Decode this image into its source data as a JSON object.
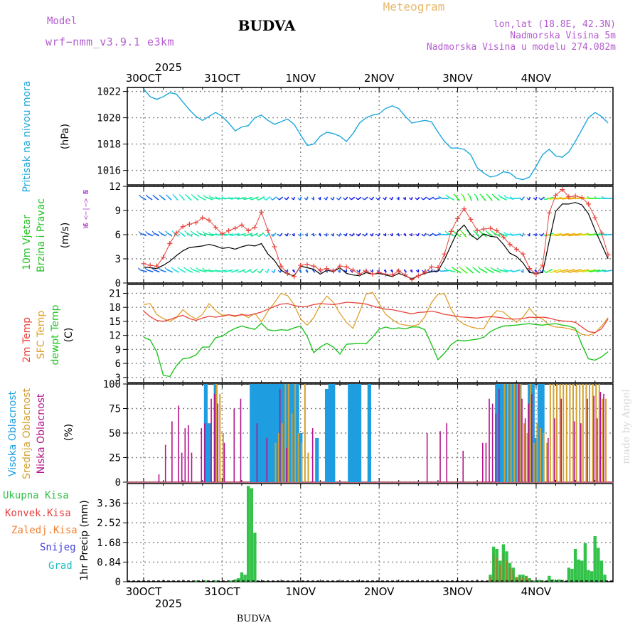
{
  "header": {
    "model_label": "Model",
    "model_name": "wrf−nmm_v3.9.1  e3km",
    "city": "BUDVA",
    "meteogram": "Meteogram",
    "lonlat": "lon,lat (18.8E, 42.3N)",
    "elevation": "Nadmorska Visina 5m",
    "model_elevation": "Nadmorska Visina u modelu 274.082m"
  },
  "footer": {
    "city": "BUDVA",
    "watermark": "made by Angel"
  },
  "colors": {
    "pressure": "#1ca8dc",
    "wind_label": "#22c322",
    "temp2m": "#e8443c",
    "sfc": "#e0a030",
    "dew": "#22c322",
    "high_cloud": "#1e9ee0",
    "mid_cloud": "#d4a030",
    "low_cloud": "#b4148c",
    "total_precip": "#33c24a",
    "conv": "#e84040",
    "frozen": "#f08030",
    "snow": "#4040d8",
    "graupel": "#20c0c0",
    "dir_label": "#b040d0",
    "title": "#c060d0"
  },
  "chart_data": [
    {
      "type": "line",
      "panel": "pressure",
      "ylabel": "Pritisak na nivou mora",
      "units": "(hPa)",
      "yticks": [
        1016,
        1018,
        1020,
        1022
      ],
      "ylim": [
        1014.9,
        1022.3
      ],
      "x_hours": [
        0,
        2,
        4,
        6,
        8,
        10,
        12,
        14,
        16,
        18,
        20,
        22,
        24,
        26,
        28,
        30,
        32,
        34,
        36,
        38,
        40,
        42,
        44,
        46,
        48,
        50,
        52,
        54,
        56,
        58,
        60,
        62,
        64,
        66,
        68,
        70,
        72,
        74,
        76,
        78,
        80,
        82,
        84,
        86,
        88,
        90,
        92,
        94,
        96,
        98,
        100,
        102,
        104,
        106,
        108,
        110,
        112,
        114,
        116,
        118,
        120,
        122,
        124,
        126,
        128,
        130,
        132,
        134,
        136,
        138,
        140,
        142
      ],
      "values": [
        1022.2,
        1021.6,
        1021.4,
        1021.6,
        1021.9,
        1021.8,
        1021.2,
        1020.6,
        1020.1,
        1019.8,
        1020.1,
        1020.4,
        1020.1,
        1019.6,
        1019.0,
        1019.3,
        1019.4,
        1020.0,
        1020.2,
        1019.8,
        1019.5,
        1019.7,
        1019.9,
        1019.5,
        1018.7,
        1017.9,
        1018.0,
        1018.6,
        1018.9,
        1018.8,
        1018.6,
        1018.2,
        1018.8,
        1019.6,
        1020.0,
        1020.2,
        1020.3,
        1020.7,
        1020.9,
        1020.7,
        1020.1,
        1019.6,
        1019.7,
        1019.8,
        1019.7,
        1018.9,
        1018.2,
        1017.7,
        1017.7,
        1017.6,
        1017.2,
        1016.2,
        1015.8,
        1015.5,
        1015.6,
        1015.9,
        1015.8,
        1015.4,
        1015.3,
        1015.5,
        1016.3,
        1017.2,
        1017.6,
        1017.1,
        1017.0,
        1017.4,
        1018.2,
        1019.1,
        1020.0,
        1020.4,
        1020.1,
        1019.6
      ]
    },
    {
      "type": "line",
      "panel": "wind",
      "ylabel": [
        "10m Vjetar",
        "Brzina i Pravac"
      ],
      "units": "(m/s)",
      "dir_label": [
        "N",
        "W <−|−> E",
        "S"
      ],
      "yticks": [
        0,
        3,
        6,
        9,
        12
      ],
      "ylim": [
        0,
        12
      ],
      "speed_hours": [
        0,
        2,
        4,
        6,
        8,
        10,
        12,
        14,
        16,
        18,
        20,
        22,
        24,
        26,
        28,
        30,
        32,
        34,
        36,
        38,
        40,
        42,
        44,
        46,
        48,
        50,
        52,
        54,
        56,
        58,
        60,
        62,
        64,
        66,
        68,
        70,
        72,
        74,
        76,
        78,
        80,
        82,
        84,
        86,
        88,
        90,
        92,
        94,
        96,
        98,
        100,
        102,
        104,
        106,
        108,
        110,
        112,
        114,
        116,
        118,
        120,
        122,
        124,
        126,
        128,
        130,
        132,
        134,
        136,
        138,
        140,
        142
      ],
      "speed": [
        2.0,
        1.9,
        1.8,
        2.2,
        2.7,
        3.4,
        4.0,
        4.4,
        4.5,
        4.6,
        4.8,
        4.6,
        4.3,
        4.4,
        4.2,
        4.5,
        4.7,
        4.6,
        4.9,
        3.6,
        2.8,
        1.6,
        1.1,
        0.9,
        2.1,
        1.9,
        1.7,
        1.1,
        1.6,
        1.4,
        1.9,
        1.2,
        1.0,
        0.9,
        1.3,
        1.1,
        1.2,
        1.0,
        0.8,
        1.2,
        0.9,
        0.5,
        0.9,
        1.2,
        1.4,
        1.5,
        2.9,
        4.7,
        6.4,
        7.2,
        6.0,
        5.4,
        6.1,
        5.8,
        5.7,
        4.8,
        3.7,
        3.3,
        2.5,
        1.3,
        1.2,
        1.3,
        5.2,
        8.9,
        9.8,
        9.8,
        10.0,
        9.7,
        8.6,
        6.6,
        4.8,
        3.0
      ],
      "gust": [
        2.4,
        2.2,
        2.1,
        3.2,
        4.9,
        6.2,
        7.0,
        7.3,
        7.5,
        8.1,
        7.8,
        6.9,
        6.1,
        6.5,
        6.8,
        7.2,
        6.5,
        6.9,
        8.8,
        6.5,
        4.5,
        2.1,
        1.2,
        0.8,
        2.2,
        2.3,
        2.1,
        1.6,
        1.8,
        1.5,
        2.1,
        2.0,
        1.6,
        1.1,
        1.5,
        1.1,
        1.3,
        1.1,
        1.0,
        1.5,
        1.0,
        0.4,
        0.9,
        1.3,
        2.0,
        1.9,
        3.6,
        6.4,
        8.0,
        9.2,
        7.9,
        6.5,
        6.7,
        6.8,
        6.5,
        5.7,
        4.8,
        4.2,
        3.6,
        1.8,
        1.1,
        2.2,
        8.7,
        10.9,
        11.6,
        10.7,
        10.8,
        10.6,
        9.8,
        8.1,
        6.2,
        3.5
      ],
      "band_levels": [
        1.5,
        6.0,
        10.5
      ],
      "direction_deg": [
        300,
        305,
        310,
        310,
        315,
        320,
        320,
        315,
        310,
        300,
        290,
        270,
        250,
        240,
        230,
        230,
        220,
        210,
        200,
        190,
        190,
        190,
        180,
        170,
        170,
        170,
        160,
        160,
        170,
        170,
        180,
        180,
        190,
        190,
        190,
        180,
        180,
        170,
        170,
        160,
        160,
        170,
        180,
        190,
        200,
        220,
        260,
        300,
        320,
        330,
        330,
        330,
        320,
        320,
        310,
        300,
        280,
        240,
        180,
        170,
        170,
        190,
        220,
        235,
        240,
        240,
        240,
        245,
        250,
        250,
        250,
        250
      ]
    },
    {
      "type": "line",
      "panel": "temperature",
      "ylabel": [
        "2m Temp",
        "SFC Temp",
        "dewpt Temp"
      ],
      "units": "(C)",
      "yticks": [
        3,
        6,
        9,
        12,
        15,
        18,
        21
      ],
      "ylim": [
        1.9,
        22.9
      ],
      "x_hours": [
        0,
        2,
        4,
        6,
        8,
        10,
        12,
        14,
        16,
        18,
        20,
        22,
        24,
        26,
        28,
        30,
        32,
        34,
        36,
        38,
        40,
        42,
        44,
        46,
        48,
        50,
        52,
        54,
        56,
        58,
        60,
        62,
        64,
        66,
        68,
        70,
        72,
        74,
        76,
        78,
        80,
        82,
        84,
        86,
        88,
        90,
        92,
        94,
        96,
        98,
        100,
        102,
        104,
        106,
        108,
        110,
        112,
        114,
        116,
        118,
        120,
        122,
        124,
        126,
        128,
        130,
        132,
        134,
        136,
        138,
        140,
        142
      ],
      "t2m": [
        17.2,
        16.0,
        15.2,
        15.0,
        15.4,
        15.9,
        16.3,
        15.6,
        15.2,
        15.7,
        16.1,
        15.9,
        16.1,
        16.4,
        16.2,
        16.4,
        16.3,
        16.6,
        17.0,
        17.6,
        18.2,
        18.7,
        18.8,
        18.4,
        18.1,
        18.2,
        18.6,
        18.8,
        18.7,
        18.6,
        18.8,
        19.1,
        19.0,
        18.9,
        18.7,
        18.3,
        17.9,
        17.6,
        17.5,
        17.2,
        16.9,
        16.6,
        16.9,
        17.0,
        17.2,
        16.9,
        16.5,
        16.3,
        16.0,
        15.9,
        15.8,
        15.7,
        15.9,
        16.0,
        15.9,
        15.7,
        15.5,
        15.5,
        15.6,
        15.9,
        15.8,
        15.9,
        15.7,
        15.3,
        15.1,
        15.0,
        14.8,
        13.8,
        12.8,
        12.6,
        13.4,
        15.5
      ],
      "sfc": [
        18.6,
        18.8,
        16.5,
        15.6,
        15.0,
        15.8,
        17.5,
        16.3,
        15.5,
        16.5,
        18.8,
        17.3,
        16.3,
        16.4,
        16.0,
        16.6,
        15.8,
        16.7,
        14.9,
        17.2,
        19.0,
        21.0,
        20.5,
        18.6,
        15.5,
        14.2,
        15.8,
        18.6,
        20.4,
        19.1,
        16.7,
        14.8,
        13.5,
        17.0,
        20.8,
        21.2,
        18.8,
        16.5,
        15.4,
        14.5,
        14.2,
        14.0,
        14.3,
        16.0,
        19.0,
        20.8,
        20.9,
        17.6,
        15.3,
        14.4,
        13.8,
        13.5,
        13.4,
        15.8,
        17.3,
        17.0,
        15.8,
        14.8,
        15.9,
        17.8,
        16.1,
        15.5,
        14.2,
        13.8,
        13.7,
        13.4,
        13.1,
        12.2,
        12.0,
        12.5,
        14.0,
        15.8
      ],
      "dew": [
        11.6,
        11.0,
        8.5,
        3.5,
        3.2,
        5.5,
        7.0,
        7.2,
        7.8,
        9.5,
        9.5,
        11.5,
        11.8,
        12.8,
        13.5,
        14.0,
        13.6,
        13.3,
        14.6,
        13.2,
        13.0,
        13.2,
        13.1,
        13.6,
        14.0,
        11.8,
        8.3,
        9.5,
        10.3,
        9.5,
        8.0,
        10.1,
        10.2,
        10.3,
        10.2,
        11.6,
        13.3,
        13.8,
        13.4,
        13.6,
        13.4,
        13.8,
        13.8,
        13.2,
        10.1,
        6.8,
        8.2,
        10.0,
        11.0,
        10.8,
        11.0,
        11.2,
        11.6,
        12.8,
        13.5,
        14.0,
        14.1,
        14.2,
        14.4,
        14.5,
        14.3,
        14.2,
        14.4,
        14.5,
        14.2,
        14.0,
        13.5,
        10.0,
        7.0,
        6.7,
        7.4,
        8.5
      ]
    },
    {
      "type": "bar",
      "panel": "clouds",
      "ylabel": [
        "Visoka Oblacnost",
        "Srednja Oblacnost",
        "Niska Oblacnost"
      ],
      "units": "(%)",
      "yticks": [
        0,
        25,
        50,
        75,
        100
      ],
      "ylim": [
        0,
        100
      ],
      "high_hours": [
        19,
        20,
        22,
        33,
        34,
        35,
        36,
        37,
        38,
        39,
        40,
        41,
        42,
        43,
        44,
        45,
        46,
        47,
        48,
        53,
        56,
        57,
        58,
        63,
        64,
        65,
        66,
        69,
        108,
        109,
        110,
        111,
        112,
        113,
        114,
        115,
        118,
        119,
        120,
        121,
        122
      ],
      "high_values": [
        100,
        60,
        100,
        100,
        100,
        100,
        100,
        100,
        100,
        100,
        100,
        100,
        100,
        100,
        100,
        100,
        100,
        100,
        50,
        45,
        95,
        100,
        100,
        100,
        100,
        100,
        100,
        100,
        100,
        100,
        100,
        100,
        100,
        100,
        100,
        100,
        100,
        100,
        45,
        100,
        100
      ],
      "mid_hours": [
        22,
        23,
        24,
        40,
        41,
        42,
        43,
        44,
        45,
        46,
        47,
        48,
        49,
        50,
        110,
        111,
        112,
        113,
        114,
        115,
        116,
        117,
        118,
        119,
        120,
        121,
        122,
        123,
        124,
        125,
        126,
        127,
        128,
        129,
        130,
        131,
        132,
        133,
        134,
        135,
        136,
        137,
        138,
        139,
        140,
        141
      ],
      "mid_values": [
        100,
        90,
        50,
        40,
        50,
        60,
        100,
        100,
        70,
        100,
        50,
        40,
        100,
        30,
        100,
        100,
        100,
        100,
        100,
        100,
        60,
        50,
        100,
        40,
        60,
        55,
        50,
        40,
        100,
        100,
        100,
        100,
        100,
        100,
        100,
        100,
        100,
        100,
        100,
        100,
        100,
        100,
        100,
        100,
        85,
        85
      ],
      "low_hours": [
        5,
        7,
        9,
        11,
        12,
        13,
        14,
        15,
        18,
        19,
        21,
        22,
        23,
        25,
        28,
        30,
        35,
        38,
        42,
        44,
        52,
        87,
        91,
        93,
        98,
        104,
        105,
        106,
        107,
        108,
        109,
        115,
        116,
        117,
        118,
        119,
        124,
        126,
        128,
        132,
        134,
        136,
        138,
        139,
        140,
        141
      ],
      "low_values": [
        8,
        38,
        62,
        78,
        30,
        55,
        58,
        30,
        55,
        60,
        85,
        90,
        80,
        40,
        75,
        85,
        60,
        45,
        95,
        35,
        55,
        50,
        52,
        60,
        32,
        40,
        40,
        85,
        80,
        70,
        95,
        100,
        85,
        65,
        80,
        90,
        45,
        65,
        85,
        62,
        60,
        85,
        88,
        65,
        92,
        90
      ]
    },
    {
      "type": "bar",
      "panel": "precip",
      "ylabel": [
        "Ukupna Kisa",
        "Konvek.Kisa",
        "Zaledj.Kisa",
        "Snijeg",
        "Grad"
      ],
      "units": "1hr Precip (mm)",
      "yticks": [
        0,
        0.84,
        1.68,
        2.52,
        3.36
      ],
      "ylim": [
        0,
        4.2
      ],
      "total_hours": [
        16,
        19,
        22,
        26,
        27,
        28,
        29,
        30,
        31,
        32,
        33,
        34,
        106,
        107,
        108,
        109,
        110,
        111,
        112,
        113,
        114,
        115,
        116,
        117,
        118,
        119,
        120,
        121,
        122,
        124,
        125,
        126,
        127,
        128,
        130,
        131,
        132,
        133,
        134,
        135,
        136,
        137,
        138,
        139,
        140,
        141
      ],
      "total_values": [
        0.05,
        0.05,
        0.05,
        0.05,
        0.05,
        0.1,
        0.15,
        0.4,
        0.3,
        4.1,
        4.0,
        2.1,
        0.3,
        1.5,
        1.4,
        0.9,
        1.6,
        1.3,
        0.8,
        0.6,
        0.2,
        0.3,
        0.3,
        0.25,
        0.15,
        0.05,
        0.05,
        0.08,
        0.05,
        0.25,
        0.1,
        0.06,
        0.1,
        0.08,
        0.6,
        0.55,
        1.4,
        0.95,
        0.9,
        1.65,
        0.5,
        0.45,
        1.95,
        1.45,
        0.9,
        0.3
      ],
      "conv_hours": [
        106,
        107,
        108,
        109,
        110,
        111,
        112,
        113,
        114,
        115,
        116,
        117,
        118
      ],
      "conv_values": [
        0.2,
        1.2,
        1.0,
        0.7,
        1.2,
        0.9,
        0.6,
        0.5,
        0.2,
        0.2,
        0.2,
        0.2,
        0.1
      ]
    }
  ],
  "x_axis": {
    "year": "2025",
    "start_hour_offset": -5,
    "end_hour": 143.5,
    "day_labels": [
      "30OCT",
      "31OCT",
      "1NOV",
      "2NOV",
      "3NOV",
      "4NOV"
    ],
    "day_hours": [
      0,
      24,
      48,
      72,
      96,
      120
    ]
  }
}
